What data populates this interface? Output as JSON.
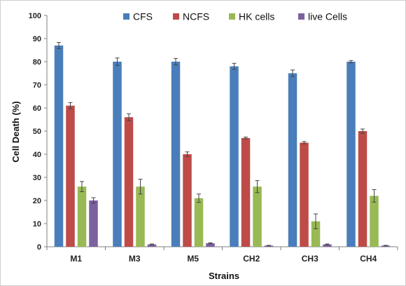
{
  "chart_data": {
    "type": "bar",
    "title": "",
    "xlabel": "Strains",
    "ylabel": "Cell Death (%)",
    "ylim": [
      0,
      100
    ],
    "yticks": [
      0,
      10,
      20,
      30,
      40,
      50,
      60,
      70,
      80,
      90,
      100
    ],
    "categories": [
      "M1",
      "M3",
      "M5",
      "CH2",
      "CH3",
      "CH4"
    ],
    "legend_position": "top",
    "grid": false,
    "series": [
      {
        "name": "CFS",
        "color": "#4a7ebb",
        "values": [
          87,
          80,
          80,
          78,
          75,
          80
        ],
        "errors": [
          1.3,
          1.6,
          1.4,
          1.3,
          1.4,
          0.5
        ]
      },
      {
        "name": "NCFS",
        "color": "#be4b48",
        "values": [
          61,
          56,
          40,
          47,
          45,
          50
        ],
        "errors": [
          1.3,
          1.5,
          1.0,
          0.4,
          0.5,
          0.9
        ]
      },
      {
        "name": "HK cells",
        "color": "#98b954",
        "values": [
          26,
          26,
          21,
          26,
          11,
          22
        ],
        "errors": [
          2.2,
          3.2,
          1.8,
          2.6,
          3.2,
          2.7
        ]
      },
      {
        "name": "live Cells",
        "color": "#7d60a0",
        "values": [
          20,
          1,
          1.5,
          0.5,
          1,
          0.5
        ],
        "errors": [
          1.2,
          0.2,
          0.2,
          0.1,
          0.2,
          0.1
        ]
      }
    ]
  }
}
